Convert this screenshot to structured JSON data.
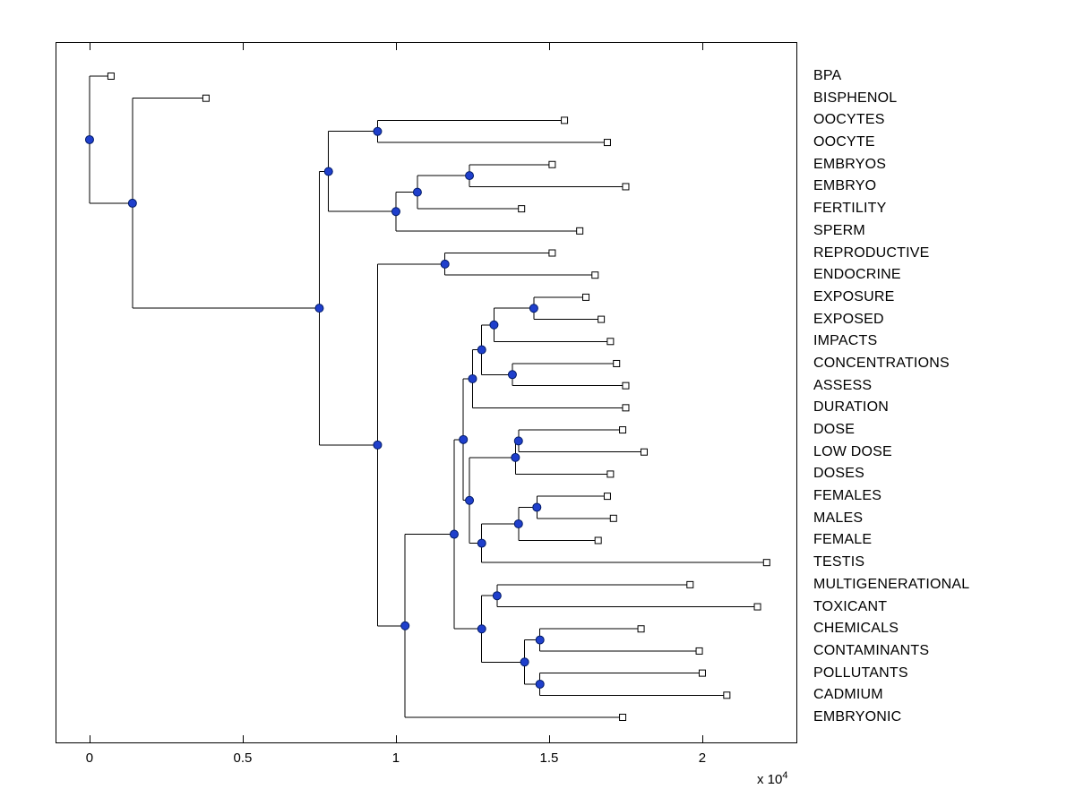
{
  "figure": {
    "background": "#ffffff",
    "scale_note": {
      "base": "x 10",
      "exp": "4"
    }
  },
  "chart_data": {
    "type": "dendrogram",
    "title": "",
    "xlabel": "",
    "ylabel": "",
    "orientation": "root at left, leaves at right",
    "units_note": "distance values are in units of 10^4",
    "grid": false,
    "x_axis": {
      "ticks": [
        "0",
        "0.5",
        "1",
        "1.5",
        "2"
      ],
      "tick_values": [
        0,
        0.5,
        1,
        1.5,
        2
      ],
      "multiplier": "x 10^4",
      "xlim": [
        -0.111,
        2.31
      ]
    },
    "colors": {
      "link": "#000000",
      "node_fill": "#1f3fcc",
      "node_stroke": "#001a66",
      "leaf_marker_fill": "#ffffff",
      "leaf_marker_stroke": "#000000",
      "axis_box": "#000000"
    },
    "leaves": [
      {
        "label": "BPA",
        "x": 0.07
      },
      {
        "label": "BISPHENOL",
        "x": 0.38
      },
      {
        "label": "OOCYTES",
        "x": 1.55
      },
      {
        "label": "OOCYTE",
        "x": 1.69
      },
      {
        "label": "EMBRYOS",
        "x": 1.51
      },
      {
        "label": "EMBRYO",
        "x": 1.75
      },
      {
        "label": "FERTILITY",
        "x": 1.41
      },
      {
        "label": "SPERM",
        "x": 1.6
      },
      {
        "label": "REPRODUCTIVE",
        "x": 1.51
      },
      {
        "label": "ENDOCRINE",
        "x": 1.65
      },
      {
        "label": "EXPOSURE",
        "x": 1.62
      },
      {
        "label": "EXPOSED",
        "x": 1.67
      },
      {
        "label": "IMPACTS",
        "x": 1.7
      },
      {
        "label": "CONCENTRATIONS",
        "x": 1.72
      },
      {
        "label": "ASSESS",
        "x": 1.75
      },
      {
        "label": "DURATION",
        "x": 1.75
      },
      {
        "label": "DOSE",
        "x": 1.74
      },
      {
        "label": "LOW DOSE",
        "x": 1.81
      },
      {
        "label": "DOSES",
        "x": 1.7
      },
      {
        "label": "FEMALES",
        "x": 1.69
      },
      {
        "label": "MALES",
        "x": 1.71
      },
      {
        "label": "FEMALE",
        "x": 1.66
      },
      {
        "label": "TESTIS",
        "x": 2.21
      },
      {
        "label": "MULTIGENERATIONAL",
        "x": 1.96
      },
      {
        "label": "TOXICANT",
        "x": 2.18
      },
      {
        "label": "CHEMICALS",
        "x": 1.8
      },
      {
        "label": "CONTAMINANTS",
        "x": 1.99
      },
      {
        "label": "POLLUTANTS",
        "x": 2.0
      },
      {
        "label": "CADMIUM",
        "x": 2.08
      },
      {
        "label": "EMBRYONIC",
        "x": 1.74
      }
    ],
    "merges": [
      {
        "a": "L2",
        "b": "L3",
        "d": 0.94
      },
      {
        "a": "L4",
        "b": "L5",
        "d": 1.24
      },
      {
        "a": "M1",
        "b": "L6",
        "d": 1.07
      },
      {
        "a": "M2",
        "b": "L7",
        "d": 1.0
      },
      {
        "a": "M0",
        "b": "M3",
        "d": 0.78
      },
      {
        "a": "L8",
        "b": "L9",
        "d": 1.16
      },
      {
        "a": "L10",
        "b": "L11",
        "d": 1.45
      },
      {
        "a": "M6",
        "b": "L12",
        "d": 1.32
      },
      {
        "a": "L13",
        "b": "L14",
        "d": 1.38
      },
      {
        "a": "M7",
        "b": "M8",
        "d": 1.28
      },
      {
        "a": "M9",
        "b": "L15",
        "d": 1.25
      },
      {
        "a": "L16",
        "b": "L17",
        "d": 1.4
      },
      {
        "a": "M11",
        "b": "L18",
        "d": 1.39
      },
      {
        "a": "L19",
        "b": "L20",
        "d": 1.46
      },
      {
        "a": "M13",
        "b": "L21",
        "d": 1.4
      },
      {
        "a": "M14",
        "b": "L22",
        "d": 1.28
      },
      {
        "a": "M12",
        "b": "M15",
        "d": 1.24
      },
      {
        "a": "M10",
        "b": "M16",
        "d": 1.22
      },
      {
        "a": "L23",
        "b": "L24",
        "d": 1.33
      },
      {
        "a": "L25",
        "b": "L26",
        "d": 1.47
      },
      {
        "a": "L27",
        "b": "L28",
        "d": 1.47
      },
      {
        "a": "M19",
        "b": "M20",
        "d": 1.42
      },
      {
        "a": "M18",
        "b": "M21",
        "d": 1.28
      },
      {
        "a": "M17",
        "b": "M22",
        "d": 1.19
      },
      {
        "a": "M23",
        "b": "L29",
        "d": 1.03
      },
      {
        "a": "M5",
        "b": "M24",
        "d": 0.94
      },
      {
        "a": "M4",
        "b": "M25",
        "d": 0.75
      },
      {
        "a": "L1",
        "b": "M26",
        "d": 0.14
      },
      {
        "a": "L0",
        "b": "M27",
        "d": 0.0
      }
    ]
  }
}
